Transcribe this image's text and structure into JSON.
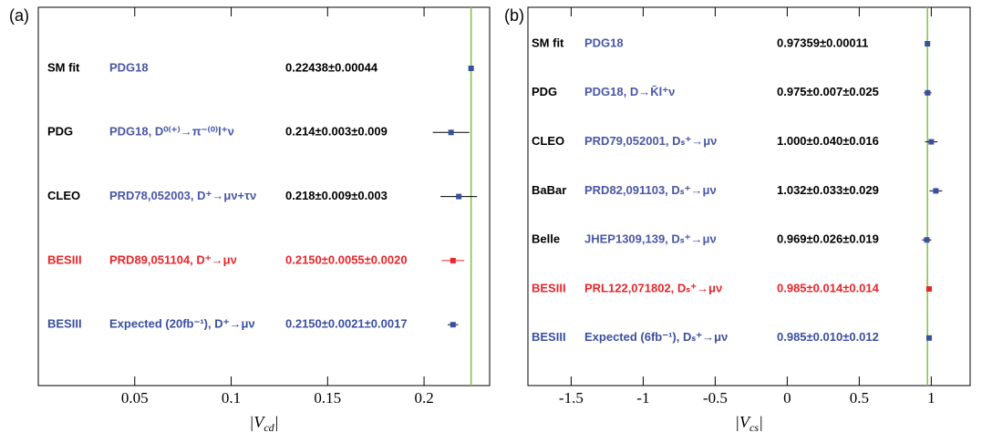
{
  "chart_data": [
    {
      "type": "forest",
      "panel": "(a)",
      "xlabel": [
        "|V",
        "cd",
        "|"
      ],
      "xlim": [
        0,
        0.234
      ],
      "xticks": [
        0.05,
        0.1,
        0.15,
        0.2
      ],
      "reference_line_color": "#7fc241",
      "rows": [
        {
          "experiment": "SM fit",
          "reference": "PDG18",
          "value_label": "0.22438±0.00044",
          "value": 0.22438,
          "stat": 0.00044,
          "syst": null,
          "label_color": "#000000",
          "ref_color": "#4a57a6",
          "color": "#3a4fa0"
        },
        {
          "experiment": "PDG",
          "reference": "PDG18, D⁰⁽⁺⁾→π⁻⁽⁰⁾l⁺ν",
          "value_label": "0.214±0.003±0.009",
          "value": 0.214,
          "stat": 0.003,
          "syst": 0.009,
          "label_color": "#000000",
          "ref_color": "#4a57a6",
          "color": "#3a4fa0"
        },
        {
          "experiment": "CLEO",
          "reference": "PRD78,052003, D⁺→μν+τν",
          "value_label": "0.218±0.009±0.003",
          "value": 0.218,
          "stat": 0.009,
          "syst": 0.003,
          "label_color": "#000000",
          "ref_color": "#4a57a6",
          "color": "#3a4fa0"
        },
        {
          "experiment": "BESIII",
          "reference": "PRD89,051104, D⁺→μν",
          "value_label": "0.2150±0.0055±0.0020",
          "value": 0.215,
          "stat": 0.0055,
          "syst": 0.002,
          "label_color": "#e8262a",
          "ref_color": "#e8262a",
          "color": "#e8262a"
        },
        {
          "experiment": "BESIII",
          "reference": "Expected (20fb⁻¹), D⁺→μν",
          "value_label": "0.2150±0.0021±0.0017",
          "value": 0.215,
          "stat": 0.0021,
          "syst": 0.0017,
          "label_color": "#3a4fa0",
          "ref_color": "#3a4fa0",
          "color": "#3a4fa0"
        }
      ]
    },
    {
      "type": "forest",
      "panel": "(b)",
      "xlabel": [
        "|V",
        "cs",
        "|"
      ],
      "xlim": [
        -1.8,
        1.27
      ],
      "xticks": [
        -1.5,
        -1,
        -0.5,
        0,
        0.5,
        1
      ],
      "reference_line_color": "#7fc241",
      "rows": [
        {
          "experiment": "SM fit",
          "reference": "PDG18",
          "value_label": "0.97359±0.00011",
          "value": 0.97359,
          "stat": 0.00011,
          "syst": null,
          "label_color": "#000000",
          "ref_color": "#4a57a6",
          "color": "#3a4fa0"
        },
        {
          "experiment": "PDG",
          "reference": "PDG18, D→K̄l⁺ν",
          "value_label": "0.975±0.007±0.025",
          "value": 0.975,
          "stat": 0.007,
          "syst": 0.025,
          "label_color": "#000000",
          "ref_color": "#4a57a6",
          "color": "#3a4fa0"
        },
        {
          "experiment": "CLEO",
          "reference": "PRD79,052001, Dₛ⁺→μν",
          "value_label": "1.000±0.040±0.016",
          "value": 1.0,
          "stat": 0.04,
          "syst": 0.016,
          "label_color": "#000000",
          "ref_color": "#4a57a6",
          "color": "#3a4fa0"
        },
        {
          "experiment": "BaBar",
          "reference": "PRD82,091103, Dₛ⁺→μν",
          "value_label": "1.032±0.033±0.029",
          "value": 1.032,
          "stat": 0.033,
          "syst": 0.029,
          "label_color": "#000000",
          "ref_color": "#4a57a6",
          "color": "#3a4fa0"
        },
        {
          "experiment": "Belle",
          "reference": "JHEP1309,139, Dₛ⁺→μν",
          "value_label": "0.969±0.026±0.019",
          "value": 0.969,
          "stat": 0.026,
          "syst": 0.019,
          "label_color": "#000000",
          "ref_color": "#4a57a6",
          "color": "#3a4fa0"
        },
        {
          "experiment": "BESIII",
          "reference": "PRL122,071802, Dₛ⁺→μν",
          "value_label": "0.985±0.014±0.014",
          "value": 0.985,
          "stat": 0.014,
          "syst": 0.014,
          "label_color": "#e8262a",
          "ref_color": "#e8262a",
          "color": "#e8262a"
        },
        {
          "experiment": "BESIII",
          "reference": "Expected (6fb⁻¹), Dₛ⁺→μν",
          "value_label": "0.985±0.010±0.012",
          "value": 0.985,
          "stat": 0.01,
          "syst": 0.012,
          "label_color": "#3a4fa0",
          "ref_color": "#3a4fa0",
          "color": "#3a4fa0"
        }
      ]
    }
  ]
}
